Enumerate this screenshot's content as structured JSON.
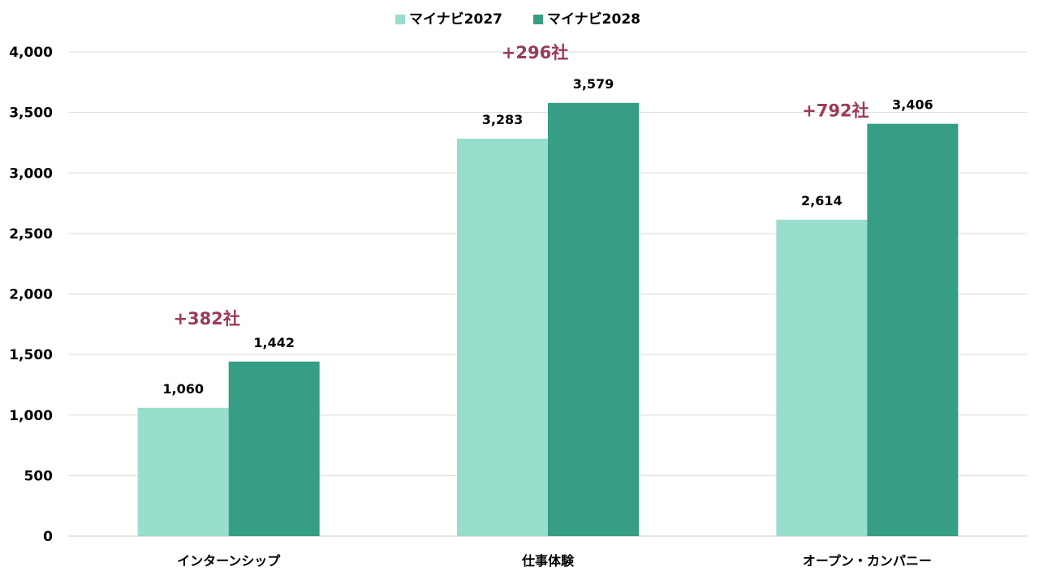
{
  "chart_data": {
    "type": "bar",
    "title": "",
    "xlabel": "",
    "ylabel": "",
    "ylim": [
      0,
      4000
    ],
    "yticks": [
      0,
      500,
      1000,
      1500,
      2000,
      2500,
      3000,
      3500,
      4000
    ],
    "ytick_labels": [
      "0",
      "500",
      "1,000",
      "1,500",
      "2,000",
      "2,500",
      "3,000",
      "3,500",
      "4,000"
    ],
    "grid": true,
    "legend_position": "top-center",
    "categories": [
      "インターンシップ",
      "仕事体験",
      "オープン・カンパニー"
    ],
    "series": [
      {
        "name": "マイナビ2027",
        "color": "#99DDCC",
        "values": [
          1060,
          3283,
          2614
        ],
        "labels": [
          "1,060",
          "3,283",
          "2,614"
        ]
      },
      {
        "name": "マイナビ2028",
        "color": "#359E85",
        "values": [
          1442,
          3579,
          3406
        ],
        "labels": [
          "1,442",
          "3,579",
          "3,406"
        ]
      }
    ],
    "annotations": [
      "+382社",
      "+296社",
      "+792社"
    ],
    "annotation_color": "#9B3A58"
  }
}
